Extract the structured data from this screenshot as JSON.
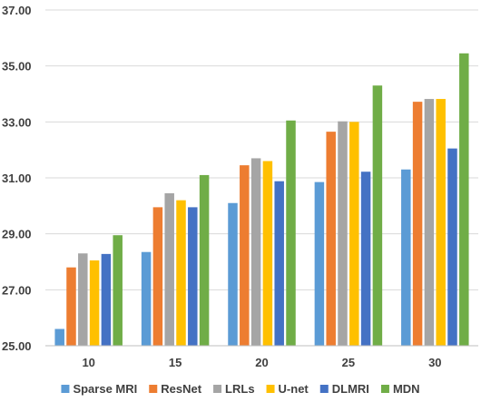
{
  "chart_data": {
    "type": "bar",
    "title": "",
    "xlabel": "",
    "ylabel": "",
    "categories": [
      "10",
      "15",
      "20",
      "25",
      "30"
    ],
    "ylim": [
      25.0,
      37.0
    ],
    "yticks": [
      "25.00",
      "27.00",
      "29.00",
      "31.00",
      "33.00",
      "35.00",
      "37.00"
    ],
    "grid": "horizontal",
    "legend_position": "bottom",
    "series": [
      {
        "name": "Sparse MRI",
        "color": "#5b9bd5",
        "values": [
          25.6,
          28.35,
          30.1,
          30.85,
          31.3
        ]
      },
      {
        "name": "ResNet",
        "color": "#ed7d31",
        "values": [
          27.8,
          29.95,
          31.45,
          32.65,
          33.72
        ]
      },
      {
        "name": "LRLs",
        "color": "#a5a5a5",
        "values": [
          28.3,
          30.45,
          31.7,
          33.02,
          33.82
        ]
      },
      {
        "name": "U-net",
        "color": "#ffc000",
        "values": [
          28.05,
          30.2,
          31.6,
          33.0,
          33.82
        ]
      },
      {
        "name": "DLMRI",
        "color": "#4472c4",
        "values": [
          28.28,
          29.95,
          30.88,
          31.22,
          32.05
        ]
      },
      {
        "name": "MDN",
        "color": "#70ad47",
        "values": [
          28.95,
          31.1,
          33.05,
          34.3,
          35.45
        ]
      }
    ]
  }
}
